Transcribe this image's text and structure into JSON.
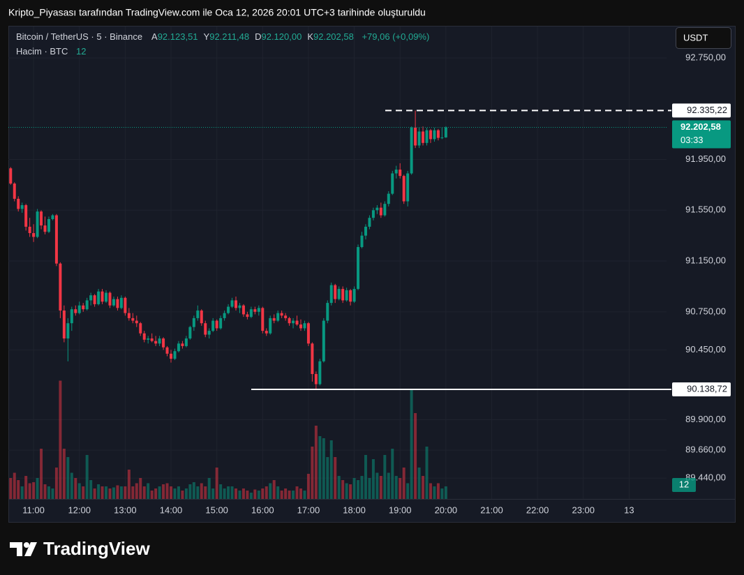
{
  "chart_data": {
    "type": "candlestick",
    "title": "Kripto_Piyasası tarafından TradingView.com ile Oca 12, 2026 20:01 UTC+3 tarihinde oluşturuldu",
    "symbol": "Bitcoin / TetherUS · 5 · Binance",
    "legend": [
      {
        "name": "A",
        "value": 92123.51,
        "label": "92.123,51"
      },
      {
        "name": "Y",
        "value": 92211.48,
        "label": "92.211,48"
      },
      {
        "name": "D",
        "value": 92120.0,
        "label": "92.120,00"
      },
      {
        "name": "K",
        "value": 92202.58,
        "label": "92.202,58"
      }
    ],
    "change": "+79,06 (+0,09%)",
    "volume_title": "Hacim · BTC",
    "currency": "USDT",
    "watermark": "TradingView",
    "up_color": "#089981",
    "down_color": "#f23645",
    "grid": true,
    "x": [
      630,
      635,
      640,
      645,
      650,
      655,
      660,
      665,
      670,
      675,
      680,
      685,
      690,
      695,
      700,
      705,
      710,
      715,
      720,
      725,
      730,
      735,
      740,
      745,
      750,
      755,
      760,
      765,
      770,
      775,
      780,
      785,
      790,
      795,
      800,
      805,
      810,
      815,
      820,
      825,
      830,
      835,
      840,
      845,
      850,
      855,
      860,
      865,
      870,
      875,
      880,
      885,
      890,
      895,
      900,
      905,
      910,
      915,
      920,
      925,
      930,
      935,
      940,
      945,
      950,
      955,
      960,
      965,
      970,
      975,
      980,
      985,
      990,
      995,
      1000,
      1005,
      1010,
      1015,
      1020,
      1025,
      1030,
      1035,
      1040,
      1045,
      1050,
      1055,
      1060,
      1065,
      1070,
      1075,
      1080,
      1085,
      1090,
      1095,
      1100,
      1105,
      1110,
      1115,
      1120,
      1125,
      1130,
      1135,
      1140,
      1145,
      1150,
      1155,
      1160,
      1165,
      1170,
      1175,
      1180,
      1185,
      1190,
      1195,
      1200
    ],
    "open": [
      91880,
      91760,
      91640,
      91560,
      91590,
      91420,
      91370,
      91340,
      91540,
      91430,
      91380,
      91480,
      91510,
      91130,
      90760,
      90540,
      90660,
      90770,
      90740,
      90800,
      90770,
      90840,
      90880,
      90810,
      90910,
      90830,
      90900,
      90800,
      90850,
      90780,
      90860,
      90740,
      90700,
      90680,
      90660,
      90580,
      90530,
      90540,
      90520,
      90500,
      90540,
      90470,
      90420,
      90380,
      90440,
      90500,
      90480,
      90540,
      90630,
      90700,
      90760,
      90660,
      90570,
      90600,
      90680,
      90620,
      90700,
      90740,
      90790,
      90840,
      90780,
      90800,
      90730,
      90710,
      90770,
      90750,
      90780,
      90600,
      90580,
      90700,
      90680,
      90740,
      90720,
      90700,
      90660,
      90680,
      90650,
      90620,
      90660,
      90500,
      90260,
      90180,
      90360,
      90680,
      90820,
      90960,
      90850,
      90930,
      90840,
      90920,
      90830,
      90930,
      91260,
      91350,
      91420,
      91490,
      91550,
      91570,
      91510,
      91600,
      91680,
      91840,
      91870,
      91820,
      91620,
      91840,
      92200,
      92060,
      92170,
      92080,
      92180,
      92110,
      92180,
      92120,
      92123.51
    ],
    "high": [
      91890,
      91770,
      91660,
      91610,
      91600,
      91490,
      91440,
      91560,
      91550,
      91500,
      91500,
      91520,
      91520,
      91140,
      90800,
      90700,
      90790,
      90800,
      90830,
      90820,
      90860,
      90900,
      90890,
      90930,
      90930,
      90920,
      90910,
      90870,
      90870,
      90880,
      90870,
      90780,
      90740,
      90720,
      90670,
      90600,
      90560,
      90580,
      90560,
      90560,
      90550,
      90480,
      90450,
      90460,
      90520,
      90520,
      90560,
      90640,
      90720,
      90800,
      90770,
      90680,
      90620,
      90700,
      90690,
      90720,
      90760,
      90810,
      90860,
      90870,
      90820,
      90810,
      90750,
      90790,
      90790,
      90800,
      90790,
      90620,
      90720,
      90730,
      90760,
      90760,
      90740,
      90710,
      90700,
      90720,
      90690,
      90680,
      90670,
      90510,
      90280,
      90380,
      90700,
      90840,
      90980,
      90970,
      90950,
      90950,
      90940,
      90930,
      90950,
      91280,
      91380,
      91440,
      91510,
      91570,
      91590,
      91610,
      91620,
      91700,
      91860,
      91900,
      91920,
      91830,
      91860,
      92210,
      92335.22,
      92200,
      92210,
      92200,
      92190,
      92200,
      92190,
      92200,
      92211.48
    ],
    "low": [
      91750,
      91620,
      91540,
      91530,
      91390,
      91340,
      91300,
      91330,
      91400,
      91360,
      91370,
      91470,
      91110,
      90700,
      90510,
      90360,
      90600,
      90720,
      90730,
      90750,
      90760,
      90800,
      90790,
      90800,
      90810,
      90820,
      90780,
      90790,
      90760,
      90770,
      90720,
      90680,
      90660,
      90630,
      90560,
      90510,
      90500,
      90510,
      90480,
      90480,
      90450,
      90400,
      90350,
      90370,
      90430,
      90460,
      90470,
      90530,
      90600,
      90680,
      90640,
      90550,
      90540,
      90590,
      90600,
      90610,
      90680,
      90730,
      90780,
      90760,
      90740,
      90710,
      90690,
      90700,
      90730,
      90720,
      90580,
      90560,
      90570,
      90660,
      90670,
      90700,
      90680,
      90640,
      90620,
      90640,
      90600,
      90600,
      90480,
      90200,
      90138.72,
      90170,
      90350,
      90660,
      90800,
      90820,
      90840,
      90820,
      90830,
      90800,
      90820,
      90920,
      91250,
      91320,
      91400,
      91470,
      91520,
      91490,
      91500,
      91580,
      91670,
      91800,
      91800,
      91600,
      91580,
      91830,
      92040,
      92040,
      92060,
      92060,
      92080,
      92090,
      92100,
      92110,
      92120
    ],
    "close": [
      91760,
      91640,
      91560,
      91590,
      91420,
      91370,
      91340,
      91540,
      91430,
      91380,
      91480,
      91510,
      91130,
      90760,
      90540,
      90660,
      90770,
      90740,
      90800,
      90770,
      90840,
      90880,
      90810,
      90910,
      90830,
      90900,
      90800,
      90850,
      90780,
      90860,
      90740,
      90700,
      90680,
      90660,
      90580,
      90530,
      90540,
      90520,
      90500,
      90540,
      90470,
      90420,
      90380,
      90440,
      90500,
      90480,
      90540,
      90630,
      90700,
      90760,
      90660,
      90570,
      90600,
      90680,
      90620,
      90700,
      90740,
      90790,
      90840,
      90780,
      90800,
      90730,
      90710,
      90770,
      90750,
      90780,
      90600,
      90580,
      90700,
      90680,
      90740,
      90720,
      90700,
      90660,
      90680,
      90650,
      90620,
      90660,
      90500,
      90260,
      90180,
      90360,
      90680,
      90820,
      90960,
      90850,
      90930,
      90840,
      90920,
      90830,
      90930,
      91260,
      91350,
      91420,
      91490,
      91550,
      91570,
      91510,
      91600,
      91680,
      91840,
      91870,
      91820,
      91620,
      91840,
      92200,
      92060,
      92170,
      92080,
      92180,
      92110,
      92180,
      92120,
      92123.51,
      92202.58
    ],
    "volume": [
      20,
      25,
      18,
      12,
      22,
      15,
      16,
      20,
      48,
      14,
      12,
      10,
      30,
      113,
      48,
      40,
      25,
      20,
      15,
      12,
      42,
      18,
      10,
      14,
      12,
      12,
      10,
      11,
      13,
      12,
      12,
      28,
      12,
      15,
      20,
      12,
      15,
      8,
      10,
      12,
      14,
      15,
      12,
      10,
      12,
      8,
      10,
      14,
      16,
      12,
      15,
      12,
      20,
      10,
      30,
      14,
      10,
      12,
      12,
      10,
      8,
      10,
      8,
      6,
      9,
      8,
      10,
      12,
      15,
      18,
      12,
      8,
      10,
      8,
      8,
      12,
      10,
      8,
      24,
      50,
      70,
      60,
      58,
      40,
      56,
      40,
      22,
      18,
      15,
      14,
      20,
      18,
      22,
      42,
      20,
      38,
      25,
      22,
      42,
      25,
      48,
      22,
      20,
      30,
      15,
      105,
      82,
      30,
      22,
      50,
      15,
      12,
      15,
      10,
      12
    ],
    "xlim": [
      627,
      1489
    ],
    "xticks": [
      {
        "value": 660,
        "label": "11:00"
      },
      {
        "value": 720,
        "label": "12:00"
      },
      {
        "value": 780,
        "label": "13:00"
      },
      {
        "value": 840,
        "label": "14:00"
      },
      {
        "value": 900,
        "label": "15:00"
      },
      {
        "value": 960,
        "label": "16:00"
      },
      {
        "value": 1020,
        "label": "17:00"
      },
      {
        "value": 1080,
        "label": "18:00"
      },
      {
        "value": 1140,
        "label": "19:00"
      },
      {
        "value": 1200,
        "label": "20:00"
      },
      {
        "value": 1260,
        "label": "21:00"
      },
      {
        "value": 1320,
        "label": "22:00"
      },
      {
        "value": 1380,
        "label": "23:00"
      },
      {
        "value": 1440,
        "label": "13"
      }
    ],
    "ylim": [
      89276,
      92986
    ],
    "yticks": [
      {
        "value": 92750,
        "label": "92.750,00"
      },
      {
        "value": 91950,
        "label": "91.950,00"
      },
      {
        "value": 91550,
        "label": "91.550,00"
      },
      {
        "value": 91150,
        "label": "91.150,00"
      },
      {
        "value": 90750,
        "label": "90.750,00"
      },
      {
        "value": 90450,
        "label": "90.450,00"
      },
      {
        "value": 89900,
        "label": "89.900,00"
      },
      {
        "value": 89660,
        "label": "89.660,00"
      },
      {
        "value": 89440,
        "label": "89.440,00"
      }
    ],
    "volume_ylim": [
      0,
      120
    ],
    "high_line": {
      "value": 92335.22,
      "label": "92.335,22"
    },
    "low_line": {
      "value": 90138.72,
      "label": "90.138,72"
    },
    "last_price": {
      "value": 92202.58,
      "label": "92.202,58"
    },
    "countdown": "03:33"
  }
}
